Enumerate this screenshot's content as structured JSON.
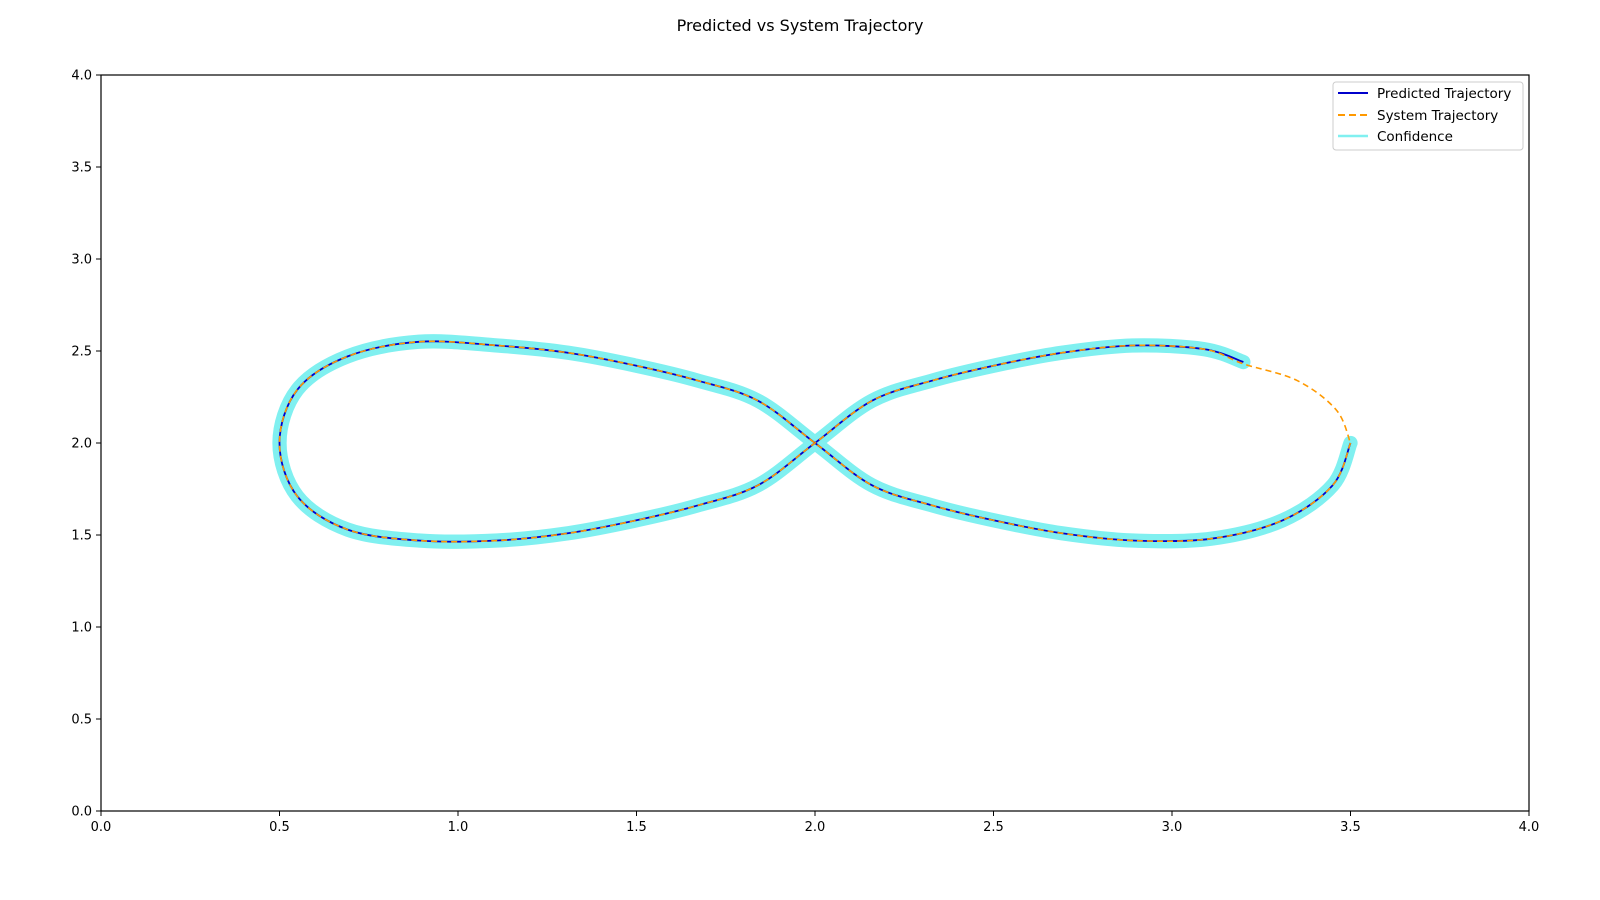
{
  "chart_data": {
    "type": "line",
    "title": "Predicted vs System Trajectory",
    "xlabel": "",
    "ylabel": "",
    "xlim": [
      0.0,
      4.0
    ],
    "ylim": [
      0.0,
      4.0
    ],
    "x_ticks": [
      "0.0",
      "0.5",
      "1.0",
      "1.5",
      "2.0",
      "2.5",
      "3.0",
      "3.5",
      "4.0"
    ],
    "y_ticks": [
      "0.0",
      "0.5",
      "1.0",
      "1.5",
      "2.0",
      "2.5",
      "3.0",
      "3.5",
      "4.0"
    ],
    "grid": false,
    "legend_position": "top-right",
    "series": [
      {
        "name": "Predicted Trajectory",
        "style": "solid",
        "color": "#0000cc",
        "x": [
          3.5,
          3.45,
          3.31,
          3.11,
          2.89,
          2.69,
          2.5,
          2.33,
          2.16,
          2.0,
          1.84,
          1.67,
          1.5,
          1.31,
          1.11,
          0.89,
          0.69,
          0.55,
          0.5,
          0.55,
          0.69,
          0.89,
          1.11,
          1.31,
          1.5,
          1.67,
          1.84,
          2.0,
          2.16,
          2.33,
          2.5,
          2.69,
          2.89,
          3.09,
          3.2
        ],
        "y": [
          2.0,
          1.77,
          1.58,
          1.48,
          1.47,
          1.51,
          1.58,
          1.66,
          1.77,
          2.0,
          2.23,
          2.34,
          2.42,
          2.49,
          2.53,
          2.55,
          2.47,
          2.29,
          2.0,
          1.71,
          1.53,
          1.47,
          1.47,
          1.51,
          1.58,
          1.66,
          1.77,
          2.0,
          2.23,
          2.34,
          2.42,
          2.49,
          2.53,
          2.51,
          2.44
        ]
      },
      {
        "name": "System Trajectory",
        "style": "dashed",
        "color": "#ff9900",
        "x": [
          3.5,
          3.45,
          3.31,
          3.11,
          2.89,
          2.69,
          2.5,
          2.33,
          2.16,
          2.0,
          1.84,
          1.67,
          1.5,
          1.31,
          1.11,
          0.89,
          0.69,
          0.55,
          0.5,
          0.55,
          0.69,
          0.89,
          1.11,
          1.31,
          1.5,
          1.67,
          1.84,
          2.0,
          2.16,
          2.33,
          2.5,
          2.69,
          2.89,
          3.09,
          3.2,
          3.35,
          3.46,
          3.5
        ],
        "y": [
          2.0,
          1.77,
          1.58,
          1.48,
          1.47,
          1.51,
          1.58,
          1.66,
          1.77,
          2.0,
          2.23,
          2.34,
          2.42,
          2.49,
          2.53,
          2.55,
          2.47,
          2.29,
          2.0,
          1.71,
          1.53,
          1.47,
          1.47,
          1.51,
          1.58,
          1.66,
          1.77,
          2.0,
          2.23,
          2.34,
          2.42,
          2.49,
          2.53,
          2.51,
          2.43,
          2.34,
          2.18,
          2.0
        ]
      },
      {
        "name": "Confidence",
        "style": "band",
        "color": "#80f0f0",
        "band_halfwidth": 0.02
      }
    ]
  }
}
